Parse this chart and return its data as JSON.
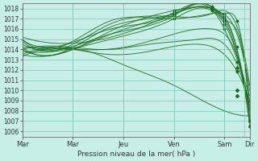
{
  "bg_color": "#c8eee8",
  "grid_color": "#80c8b8",
  "line_color": "#1a6b1a",
  "marker_color": "#1a6b1a",
  "ylabel_ticks": [
    1006,
    1007,
    1008,
    1009,
    1010,
    1011,
    1012,
    1013,
    1014,
    1015,
    1016,
    1017,
    1018
  ],
  "ylim": [
    1005.5,
    1018.5
  ],
  "xlabel": "Pression niveau de la mer( hPa )",
  "xtick_labels": [
    "Mar",
    "Mar",
    "Jeu",
    "Ven",
    "Sam",
    "Dir"
  ],
  "xtick_positions": [
    0,
    2,
    4,
    6,
    8,
    9
  ],
  "x_total": 9
}
